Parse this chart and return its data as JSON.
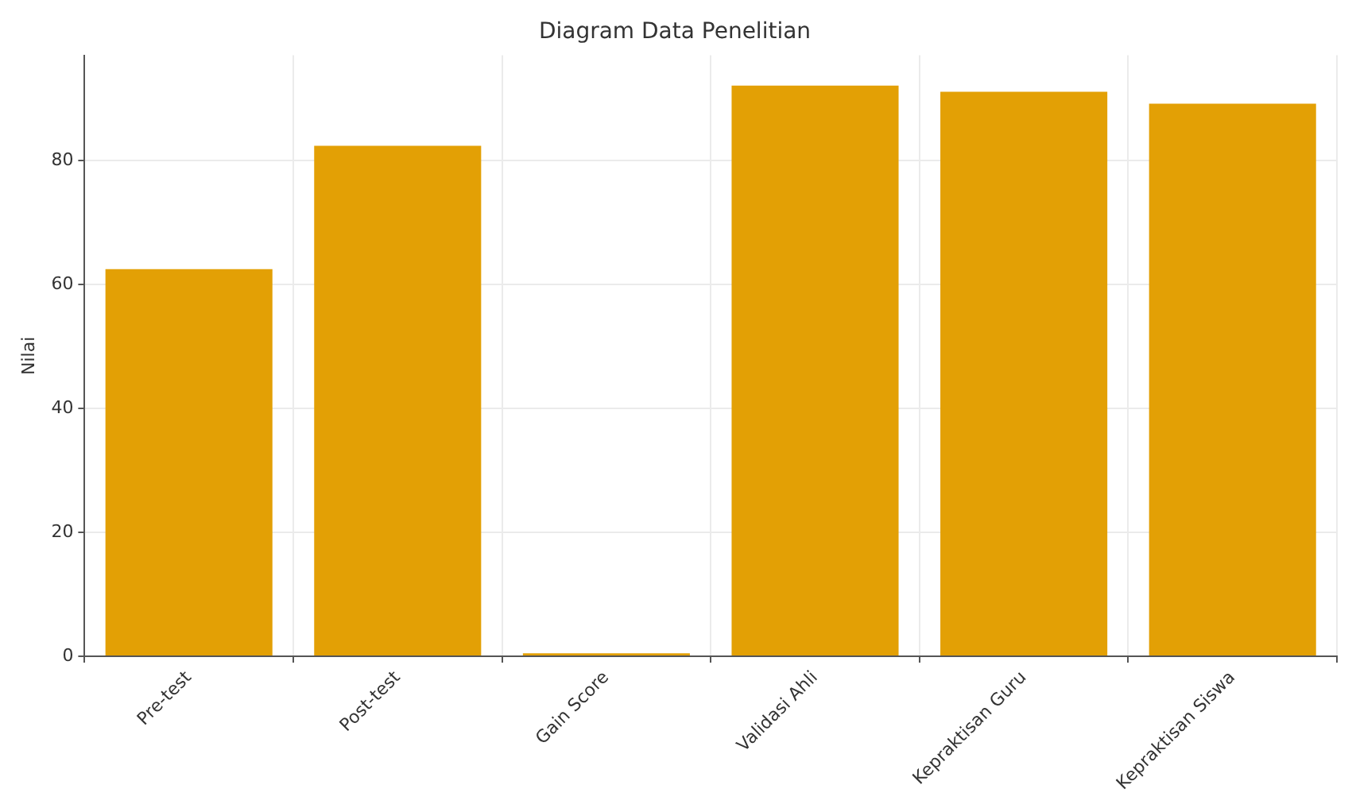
{
  "chart_data": {
    "type": "bar",
    "title": "Diagram Data Penelitian",
    "ylabel": "Nilai",
    "categories": [
      "Pre-test",
      "Post-test",
      "Gain Score",
      "Validasi Ahli",
      "Kepraktisan Guru",
      "Kepraktisan Siswa"
    ],
    "values": [
      62.5,
      82.4,
      0.5,
      92.1,
      91.1,
      89.2
    ],
    "color": "#e3a005",
    "ylim": [
      0,
      97
    ],
    "yticks": [
      0,
      20,
      40,
      60,
      80
    ],
    "grid": true
  }
}
